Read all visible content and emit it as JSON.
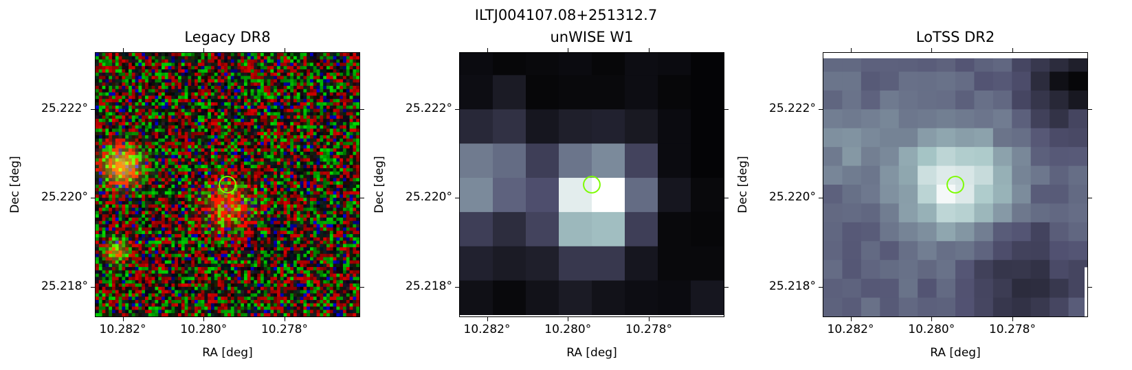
{
  "figure": {
    "title": "ILTJ004107.08+251312.7"
  },
  "panels": [
    {
      "id": "legacy",
      "title": "Legacy DR8",
      "xlabel": "RA [deg]",
      "ylabel": "Dec [deg]",
      "xticks": [
        "10.282°",
        "10.280°",
        "10.278°"
      ],
      "yticks": [
        "25.222°",
        "25.220°",
        "25.218°"
      ],
      "image_kind": "rgb-noise"
    },
    {
      "id": "unwise",
      "title": "unWISE W1",
      "xlabel": "RA [deg]",
      "ylabel": "Dec [deg]",
      "xticks": [
        "10.282°",
        "10.280°",
        "10.278°"
      ],
      "yticks": [
        "25.222°",
        "25.220°",
        "25.218°"
      ],
      "image_kind": "bone-coarse"
    },
    {
      "id": "lotss",
      "title": "LoTSS DR2",
      "xlabel": "RA [deg]",
      "ylabel": "Dec [deg]",
      "xticks": [
        "10.282°",
        "10.280°",
        "10.278°"
      ],
      "yticks": [
        "25.222°",
        "25.220°",
        "25.218°"
      ],
      "image_kind": "bone-fine"
    }
  ],
  "marker": {
    "color": "#7cfc00",
    "shape": "circle"
  },
  "colors": {
    "colormap": "bone",
    "axis": "#000000"
  }
}
